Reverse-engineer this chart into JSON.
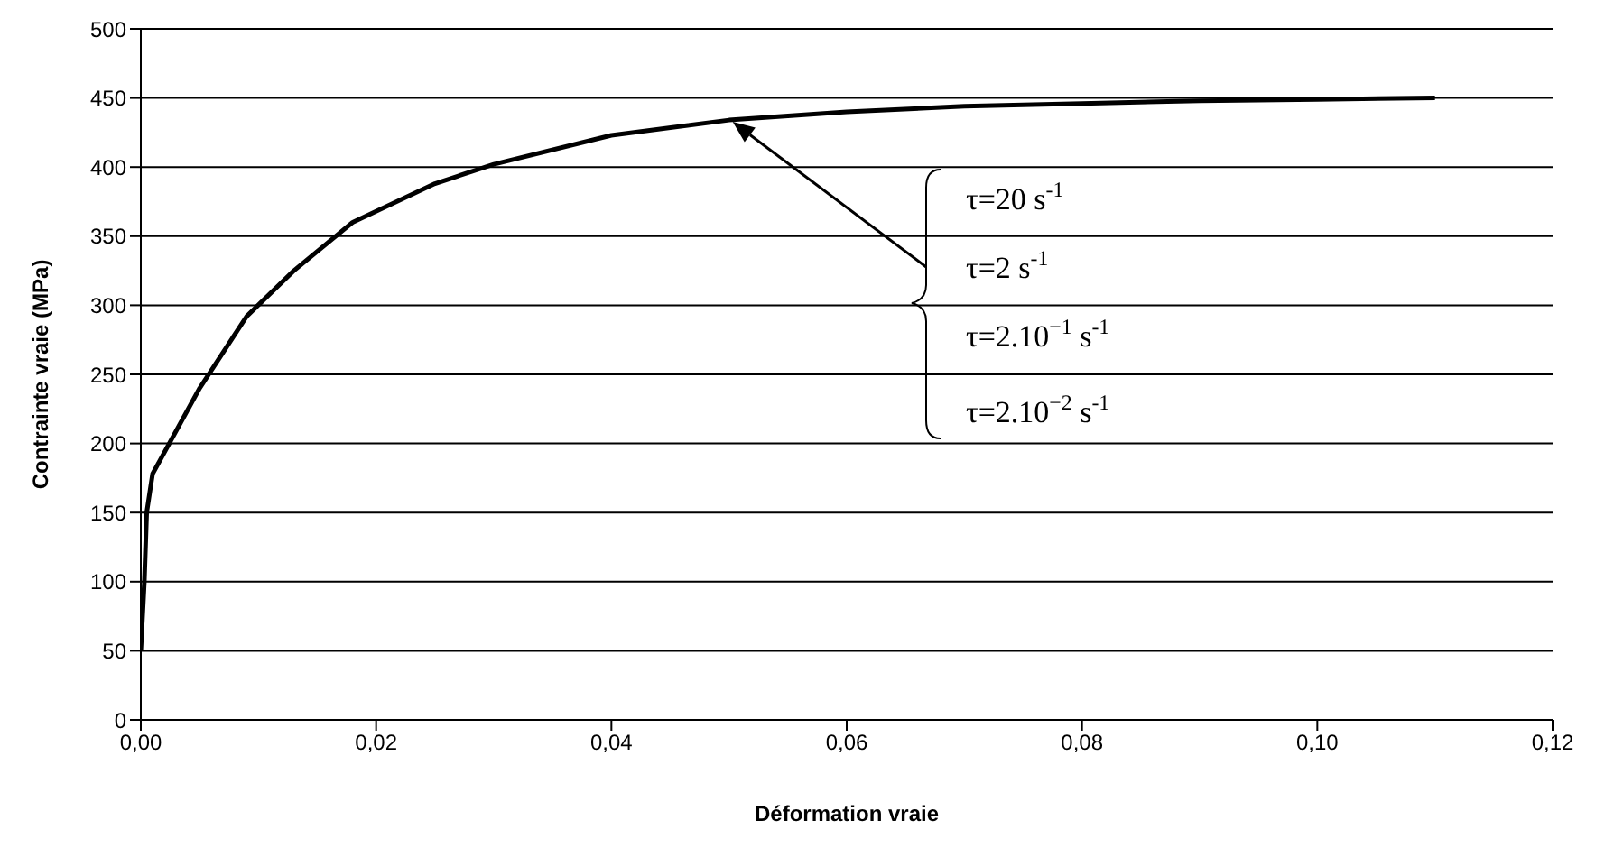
{
  "chart_data": {
    "type": "line",
    "xlabel": "Déformation vraie",
    "ylabel": "Contrainte vraie (MPa)",
    "x": [
      0,
      0.0003,
      0.0005,
      0.001,
      0.005,
      0.009,
      0.013,
      0.018,
      0.025,
      0.03,
      0.04,
      0.05,
      0.06,
      0.07,
      0.08,
      0.09,
      0.1,
      0.11
    ],
    "series": [
      {
        "color": "#000000",
        "values": [
          50,
          100,
          150,
          178,
          240,
          292,
          325,
          360,
          388,
          402,
          423,
          434,
          440,
          444,
          446,
          448,
          449,
          450
        ]
      }
    ],
    "xlim": [
      0,
      0.12
    ],
    "xticks": [
      {
        "value": 0,
        "label": "0,00"
      },
      {
        "value": 0.02,
        "label": "0,02"
      },
      {
        "value": 0.04,
        "label": "0,04"
      },
      {
        "value": 0.06,
        "label": "0,06"
      },
      {
        "value": 0.08,
        "label": "0,08"
      },
      {
        "value": 0.1,
        "label": "0,10"
      },
      {
        "value": 0.12,
        "label": "0,12"
      }
    ],
    "ylim": [
      0,
      500
    ],
    "yticks": [
      0,
      50,
      100,
      150,
      200,
      250,
      300,
      350,
      400,
      450,
      500
    ],
    "grid": "y",
    "marker": "none",
    "line_style": "solid",
    "annotations": [
      "τ=20 s$^{-1}$",
      "τ=2 s$^{-1}$",
      "τ=2.10$^{−1}$ s$^{-1}$",
      "τ=2.10$^{−2}$ s$^{-1}$"
    ]
  }
}
